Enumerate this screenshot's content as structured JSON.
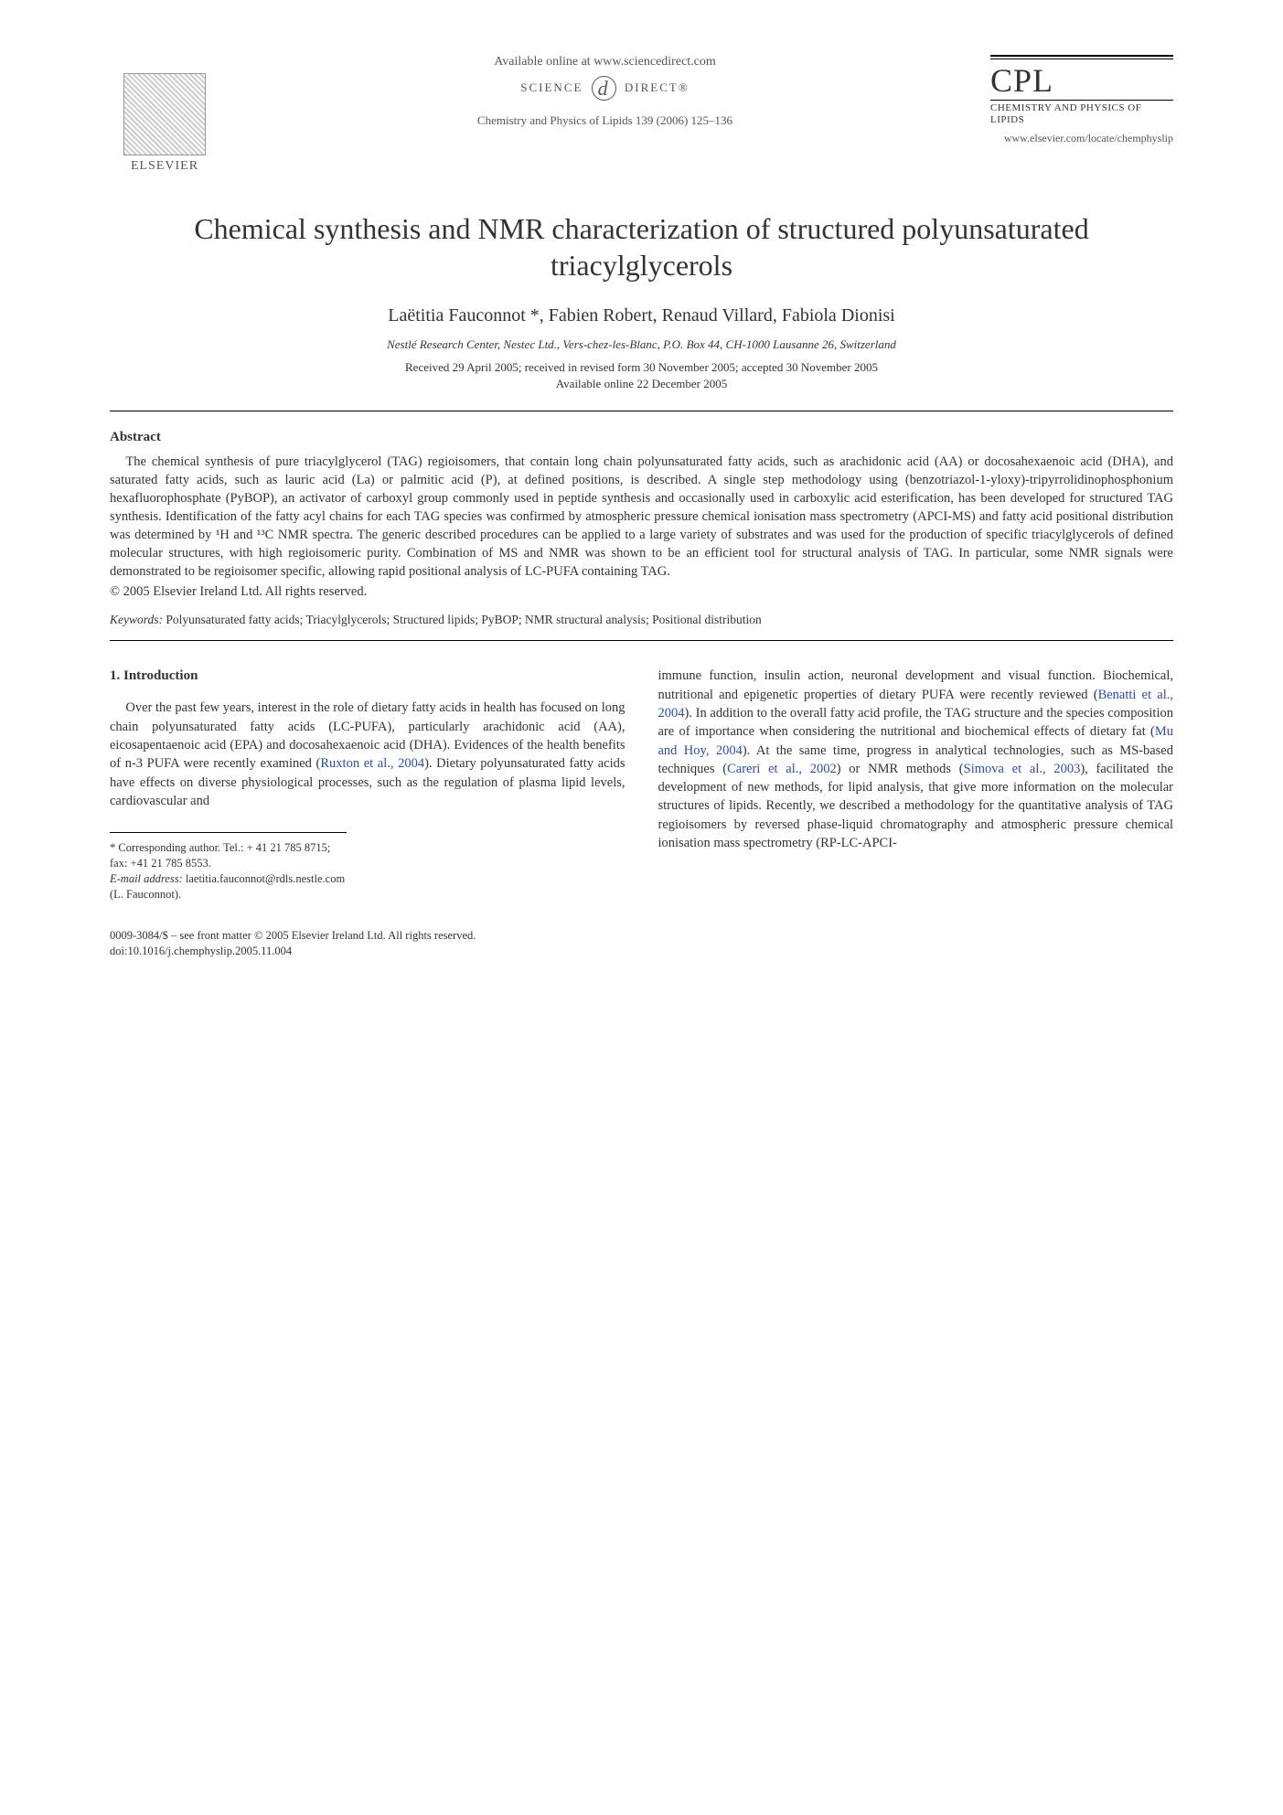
{
  "header": {
    "elsevier": "ELSEVIER",
    "available": "Available online at www.sciencedirect.com",
    "science": "SCIENCE",
    "direct": "DIRECT®",
    "journal_ref": "Chemistry and Physics of Lipids 139 (2006) 125–136",
    "cpl": "CPL",
    "cpl_sub": "CHEMISTRY AND PHYSICS OF LIPIDS",
    "cpl_url": "www.elsevier.com/locate/chemphyslip"
  },
  "title": "Chemical synthesis and NMR characterization of structured polyunsaturated triacylglycerols",
  "authors": "Laëtitia Fauconnot *, Fabien Robert, Renaud Villard, Fabiola Dionisi",
  "affiliation": "Nestlé Research Center, Nestec Ltd., Vers-chez-les-Blanc, P.O. Box 44, CH-1000 Lausanne 26, Switzerland",
  "dates_line1": "Received 29 April 2005; received in revised form 30 November 2005; accepted 30 November 2005",
  "dates_line2": "Available online 22 December 2005",
  "abstract": {
    "heading": "Abstract",
    "body": "The chemical synthesis of pure triacylglycerol (TAG) regioisomers, that contain long chain polyunsaturated fatty acids, such as arachidonic acid (AA) or docosahexaenoic acid (DHA), and saturated fatty acids, such as lauric acid (La) or palmitic acid (P), at defined positions, is described. A single step methodology using (benzotriazol-1-yloxy)-tripyrrolidinophosphonium hexafluorophosphate (PyBOP), an activator of carboxyl group commonly used in peptide synthesis and occasionally used in carboxylic acid esterification, has been developed for structured TAG synthesis. Identification of the fatty acyl chains for each TAG species was confirmed by atmospheric pressure chemical ionisation mass spectrometry (APCI-MS) and fatty acid positional distribution was determined by ¹H and ¹³C NMR spectra. The generic described procedures can be applied to a large variety of substrates and was used for the production of specific triacylglycerols of defined molecular structures, with high regioisomeric purity. Combination of MS and NMR was shown to be an efficient tool for structural analysis of TAG. In particular, some NMR signals were demonstrated to be regioisomer specific, allowing rapid positional analysis of LC-PUFA containing TAG.",
    "copyright": "© 2005 Elsevier Ireland Ltd. All rights reserved."
  },
  "keywords": {
    "label": "Keywords:",
    "text": " Polyunsaturated fatty acids; Triacylglycerols; Structured lipids; PyBOP; NMR structural analysis; Positional distribution"
  },
  "intro": {
    "heading": "1. Introduction",
    "col1_p1_a": "Over the past few years, interest in the role of dietary fatty acids in health has focused on long chain polyunsaturated fatty acids (LC-PUFA), particularly arachidonic acid (AA), eicosapentaenoic acid (EPA) and docosahexaenoic acid (DHA). Evidences of the health benefits of n-3 PUFA were recently examined (",
    "cite1": "Ruxton et al., 2004",
    "col1_p1_b": "). Dietary polyunsaturated fatty acids have effects on diverse physiological processes, such as the regulation of plasma lipid levels, cardiovascular and",
    "col2_a": "immune function, insulin action, neuronal development and visual function. Biochemical, nutritional and epigenetic properties of dietary PUFA were recently reviewed (",
    "cite2": "Benatti et al., 2004",
    "col2_b": "). In addition to the overall fatty acid profile, the TAG structure and the species composition are of importance when considering the nutritional and biochemical effects of dietary fat (",
    "cite3": "Mu and Hoy, 2004",
    "col2_c": "). At the same time, progress in analytical technologies, such as MS-based techniques (",
    "cite4": "Careri et al., 2002",
    "col2_d": ") or NMR methods (",
    "cite5": "Simova et al., 2003",
    "col2_e": "), facilitated the development of new methods, for lipid analysis, that give more information on the molecular structures of lipids. Recently, we described a methodology for the quantitative analysis of TAG regioisomers by reversed phase-liquid chromatography and atmospheric pressure chemical ionisation mass spectrometry (RP-LC-APCI-"
  },
  "footnotes": {
    "corr": "* Corresponding author. Tel.: + 41 21 785 8715;",
    "fax": "fax: +41 21 785 8553.",
    "email_label": "E-mail address:",
    "email": " laetitia.fauconnot@rdls.nestle.com",
    "email_who": "(L. Fauconnot)."
  },
  "bottom": {
    "issn": "0009-3084/$ – see front matter © 2005 Elsevier Ireland Ltd. All rights reserved.",
    "doi": "doi:10.1016/j.chemphyslip.2005.11.004"
  }
}
